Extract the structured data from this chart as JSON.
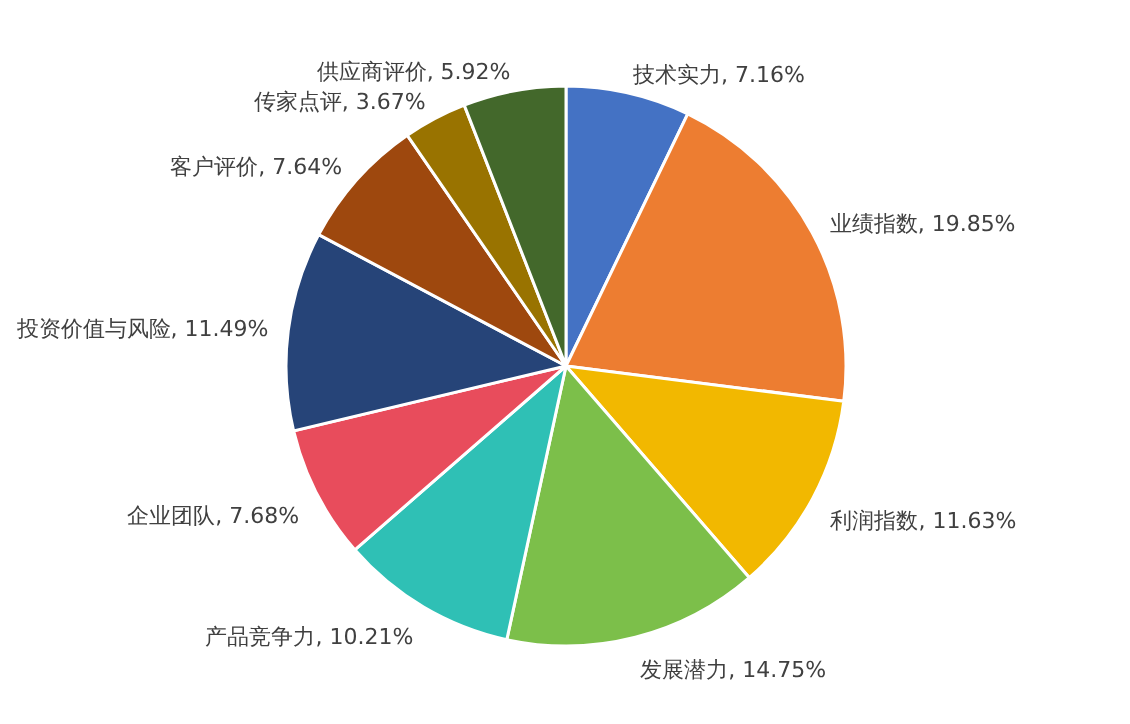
{
  "chart_data": {
    "type": "pie",
    "categories": [
      "技术实力",
      "业绩指数",
      "利润指数",
      "发展潜力",
      "产品竞争力",
      "企业团队",
      "投资价值与风险",
      "客户评价",
      "传家点评",
      "供应商评价"
    ],
    "values": [
      7.16,
      19.85,
      11.63,
      14.75,
      10.21,
      7.68,
      11.49,
      7.64,
      3.67,
      5.92
    ],
    "value_labels": [
      ", 7.16%",
      ", 19.85%",
      ", 11.63%",
      ", 14.75%",
      ", 10.21%",
      ", 7.68%",
      ", 11.49%",
      ", 7.64%",
      ", 3.67%",
      ", 5.92%"
    ],
    "colors": [
      "#4472c4",
      "#ed7d31",
      "#f2b800",
      "#7cbf4a",
      "#2fc0b5",
      "#e84c5c",
      "#264478",
      "#9e480e",
      "#997300",
      "#43682b"
    ]
  }
}
